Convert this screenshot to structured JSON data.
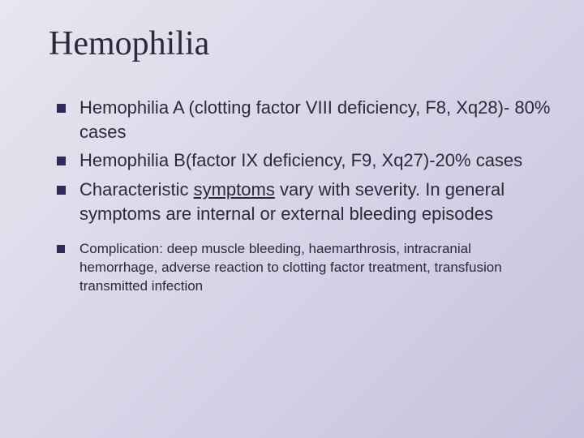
{
  "slide": {
    "title": "Hemophilia",
    "title_fontsize": 42,
    "title_color": "#2a2a3a",
    "bullets": [
      {
        "size": "main",
        "text": "Hemophilia A (clotting factor VIII deficiency, F8, Xq28)- 80% cases"
      },
      {
        "size": "main",
        "text": "Hemophilia B(factor IX deficiency, F9, Xq27)-20% cases"
      },
      {
        "size": "main",
        "text_pre": "Characteristic ",
        "text_link": "symptoms",
        "text_post": " vary with severity. In general symptoms are internal or external bleeding episodes"
      },
      {
        "size": "small",
        "text": "Complication: deep muscle bleeding, haemarthrosis, intracranial hemorrhage, adverse reaction to clotting factor treatment, transfusion transmitted infection"
      }
    ],
    "body_fontsize_main": 22,
    "body_fontsize_small": 17,
    "bullet_marker_color": "#2f2a5a",
    "background_gradient": [
      "#e8e6f0",
      "#d8d4e8",
      "#c8c2dc"
    ]
  }
}
